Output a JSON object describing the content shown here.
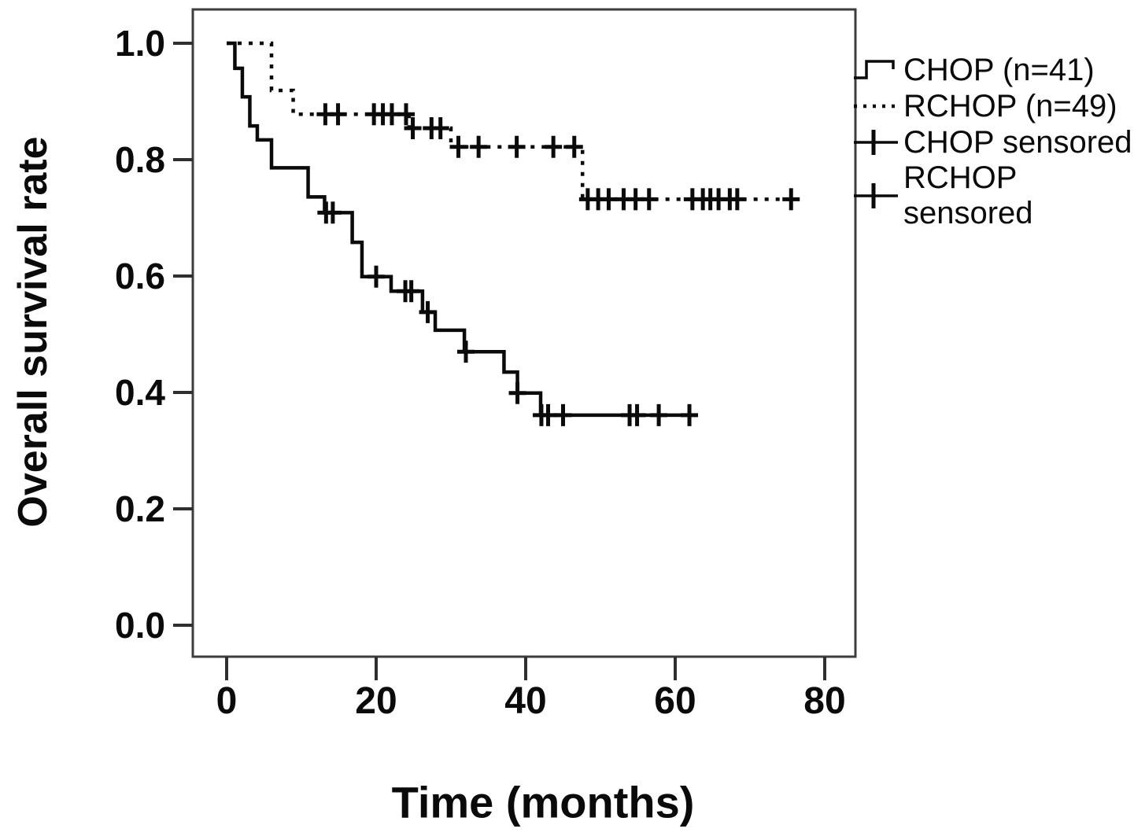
{
  "figure": {
    "ylabel": "Overall survival rate",
    "xlabel": "Time (months)"
  },
  "legend": {
    "position": "top-right-outside",
    "items": [
      {
        "id": "chop",
        "label": "CHOP (n=41)",
        "lines": [
          "CHOP (n=41)"
        ],
        "symbol": "step-line"
      },
      {
        "id": "rchop",
        "label": "RCHOP (n=49)",
        "lines": [
          "RCHOP (n=49)"
        ],
        "symbol": "dotted-line"
      },
      {
        "id": "chop-sensored",
        "label": "CHOP sensored",
        "lines": [
          "CHOP sensored"
        ],
        "symbol": "plus-line"
      },
      {
        "id": "rchop-sensored",
        "label": "RCHOP sensored",
        "lines": [
          "RCHOP",
          "sensored"
        ],
        "symbol": "plus-line"
      }
    ]
  },
  "chart_data": {
    "type": "line",
    "subtype": "kaplan-meier-step",
    "title": "",
    "xlabel": "Time (months)",
    "ylabel": "Overall survival rate",
    "xlim": [
      0,
      84
    ],
    "ylim": [
      0,
      1.06
    ],
    "xticks": [
      0,
      20,
      40,
      60,
      80
    ],
    "xtick_labels": [
      "0",
      "20",
      "40",
      "60",
      "80"
    ],
    "yticks": [
      0.0,
      0.2,
      0.4,
      0.6,
      0.8,
      1.0
    ],
    "ytick_labels": [
      "0.0",
      "0.2",
      "0.4",
      "0.6",
      "0.8",
      "1.0"
    ],
    "grid": false,
    "legend_position": "right-top-outside",
    "series": [
      {
        "name": "CHOP (n=41)",
        "line": "solid",
        "color": "#0a0a0a",
        "steps": [
          [
            0,
            1.0
          ],
          [
            1.1,
            0.957
          ],
          [
            2.1,
            0.908
          ],
          [
            3.1,
            0.858
          ],
          [
            4.1,
            0.834
          ],
          [
            6.0,
            0.786
          ],
          [
            10.9,
            0.736
          ],
          [
            13.1,
            0.709
          ],
          [
            16.8,
            0.658
          ],
          [
            18.1,
            0.599
          ],
          [
            22.0,
            0.574
          ],
          [
            26.2,
            0.538
          ],
          [
            27.9,
            0.507
          ],
          [
            31.8,
            0.47
          ],
          [
            37.1,
            0.435
          ],
          [
            38.9,
            0.399
          ],
          [
            42.0,
            0.361
          ]
        ],
        "end_time": 62.3,
        "censor_marks": [
          [
            13.3,
            0.709
          ],
          [
            14.2,
            0.709
          ],
          [
            20.0,
            0.599
          ],
          [
            23.9,
            0.574
          ],
          [
            24.7,
            0.574
          ],
          [
            26.9,
            0.538
          ],
          [
            32.0,
            0.47
          ],
          [
            38.9,
            0.399
          ],
          [
            42.1,
            0.361
          ],
          [
            43.0,
            0.361
          ],
          [
            45.0,
            0.361
          ],
          [
            53.9,
            0.361
          ],
          [
            54.9,
            0.361
          ],
          [
            57.8,
            0.361
          ],
          [
            61.9,
            0.361
          ]
        ]
      },
      {
        "name": "RCHOP (n=49)",
        "line": "dotted",
        "color": "#0a0a0a",
        "steps": [
          [
            0,
            1.0
          ],
          [
            6.0,
            0.919
          ],
          [
            8.9,
            0.878
          ],
          [
            24.4,
            0.854
          ],
          [
            30.0,
            0.822
          ],
          [
            47.6,
            0.732
          ]
        ],
        "end_time": 76.3,
        "censor_marks": [
          [
            13.2,
            0.878
          ],
          [
            14.9,
            0.878
          ],
          [
            19.7,
            0.878
          ],
          [
            20.9,
            0.878
          ],
          [
            22.1,
            0.878
          ],
          [
            24.0,
            0.878
          ],
          [
            24.9,
            0.854
          ],
          [
            27.4,
            0.854
          ],
          [
            28.6,
            0.854
          ],
          [
            31.0,
            0.822
          ],
          [
            33.7,
            0.822
          ],
          [
            38.8,
            0.822
          ],
          [
            43.7,
            0.822
          ],
          [
            46.5,
            0.822
          ],
          [
            48.3,
            0.732
          ],
          [
            49.7,
            0.732
          ],
          [
            51.1,
            0.732
          ],
          [
            53.1,
            0.732
          ],
          [
            54.7,
            0.732
          ],
          [
            56.5,
            0.732
          ],
          [
            62.3,
            0.732
          ],
          [
            63.7,
            0.732
          ],
          [
            64.7,
            0.732
          ],
          [
            65.8,
            0.732
          ],
          [
            67.3,
            0.732
          ],
          [
            68.3,
            0.732
          ],
          [
            75.5,
            0.732
          ]
        ]
      }
    ]
  },
  "colors": {
    "line": "#0a0a0a",
    "border": "#3d3d3d",
    "tick": "#2f2f2f",
    "background": "#ffffff",
    "text": "#0a0a0a"
  }
}
